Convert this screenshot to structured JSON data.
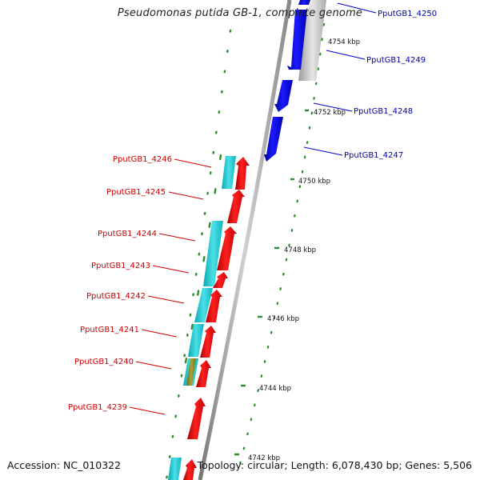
{
  "genome": {
    "title": "Pseudomonas putida GB-1, complete genome",
    "accession": "Accession: NC_010322",
    "summary": "Topology: circular; Length: 6,078,430 bp; Genes: 5,506"
  },
  "ticks": [
    "4754 kbp",
    "4752 kbp",
    "4750 kbp",
    "4748 kbp",
    "4746 kbp",
    "4744 kbp",
    "4742 kbp"
  ],
  "forward_genes": [
    "PputGB1_4246",
    "PputGB1_4245",
    "PputGB1_4244",
    "PputGB1_4243",
    "PputGB1_4242",
    "PputGB1_4241",
    "PputGB1_4240",
    "PputGB1_4239"
  ],
  "reverse_genes": [
    "PputGB1_4250",
    "PputGB1_4249",
    "PputGB1_4248",
    "PputGB1_4247"
  ],
  "colors": {
    "forward_cds": "#ff0000",
    "reverse_cds": "#0000ff",
    "forward_label": "#cc0000",
    "reverse_label": "#0000aa",
    "cog_track": "#22c8d0",
    "gc_skew_tick": "#2e8b2e",
    "backbone": "#9a9a9a",
    "unknown_cds": "#bdbdbd"
  }
}
